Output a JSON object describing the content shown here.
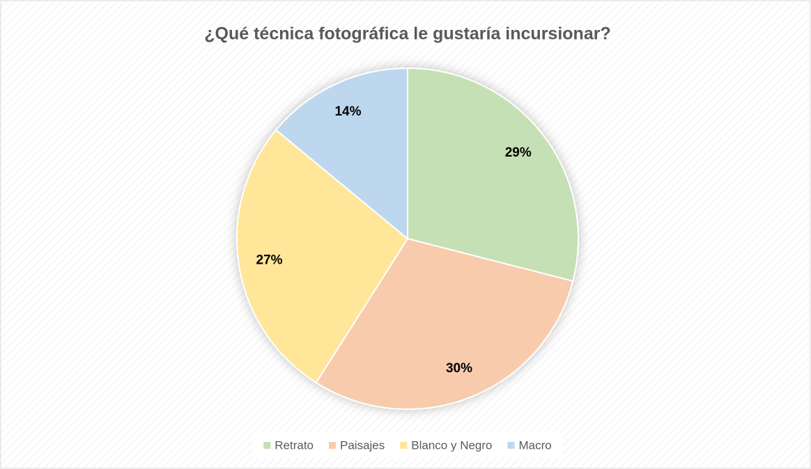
{
  "chart_data": {
    "type": "pie",
    "title": "¿Qué técnica fotográfica le gustaría incursionar?",
    "categories": [
      "Retrato",
      "Paisajes",
      "Blanco y Negro",
      "Macro"
    ],
    "values": [
      29,
      30,
      27,
      14
    ],
    "value_labels": [
      "29%",
      "30%",
      "27%",
      "14%"
    ],
    "colors": [
      "#c5e0b4",
      "#f8cbad",
      "#ffe699",
      "#bdd7ee"
    ],
    "legend": "bottom"
  }
}
